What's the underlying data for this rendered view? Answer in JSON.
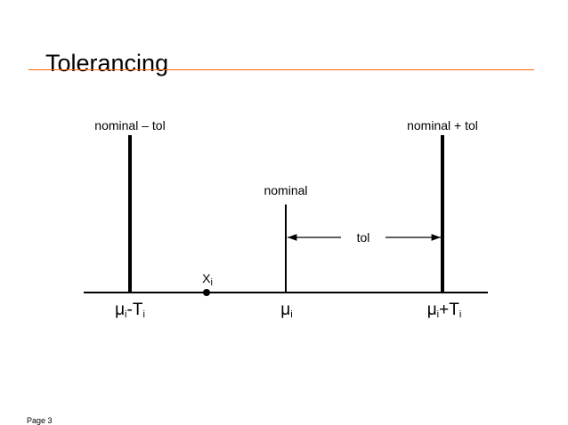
{
  "title": "Tolerancing",
  "accent_color": "#ff6600",
  "diagram": {
    "label_lower": "nominal – tol",
    "label_upper": "nominal + tol",
    "label_nominal": "nominal",
    "label_tol": "tol",
    "point_label": {
      "base": "X",
      "sub": "i"
    },
    "axis_labels": {
      "lower": {
        "base": "μ",
        "sub": "i",
        "op": "-T",
        "sub2": "i"
      },
      "nominal": {
        "base": "μ",
        "sub": "i"
      },
      "upper": {
        "base": "μ",
        "sub": "i",
        "op": "+T",
        "sub2": "i"
      }
    }
  },
  "footer": {
    "page": "Page 3"
  }
}
